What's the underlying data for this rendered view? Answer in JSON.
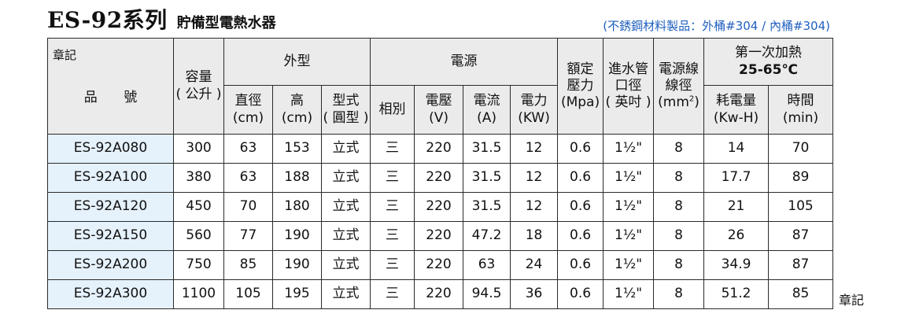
{
  "title": {
    "series": "ES-92系列",
    "subtitle": "貯備型電熱水器"
  },
  "material_note": "(不銹鋼材料製品：外桶#304 / 內桶#304)",
  "header": {
    "mark": "章記",
    "model": "品 號",
    "capacity": [
      "容量",
      "( 公升 )"
    ],
    "dimensions": "外型",
    "diameter": [
      "直徑",
      "(cm)"
    ],
    "height": [
      "高",
      "(cm)"
    ],
    "type": [
      "型式",
      "( 圓型 )"
    ],
    "power_source": "電源",
    "phase": "相別",
    "voltage": [
      "電壓",
      "(V)"
    ],
    "current": [
      "電流",
      "(A)"
    ],
    "power": [
      "電力",
      "(KW)"
    ],
    "pressure": [
      "額定",
      "壓力",
      "(Mpa)"
    ],
    "inlet": [
      "進水管",
      "口徑",
      "( 英吋 )"
    ],
    "wire": [
      "電源線",
      "線徑",
      "(mm",
      "2",
      ")"
    ],
    "first_heat": [
      "第一次加熱",
      "25-65℃"
    ],
    "energy": [
      "耗電量",
      "(Kw-H)"
    ],
    "time": [
      "時間",
      "(min)"
    ]
  },
  "rows": [
    [
      "ES-92A080",
      "300",
      "63",
      "153",
      "立式",
      "三",
      "220",
      "31.5",
      "12",
      "0.6",
      "1½\"",
      "8",
      "14",
      "70"
    ],
    [
      "ES-92A100",
      "380",
      "63",
      "188",
      "立式",
      "三",
      "220",
      "31.5",
      "12",
      "0.6",
      "1½\"",
      "8",
      "17.7",
      "89"
    ],
    [
      "ES-92A120",
      "450",
      "70",
      "180",
      "立式",
      "三",
      "220",
      "31.5",
      "12",
      "0.6",
      "1½\"",
      "8",
      "21",
      "105"
    ],
    [
      "ES-92A150",
      "560",
      "77",
      "190",
      "立式",
      "三",
      "220",
      "47.2",
      "18",
      "0.6",
      "1½\"",
      "8",
      "26",
      "87"
    ],
    [
      "ES-92A200",
      "750",
      "85",
      "190",
      "立式",
      "三",
      "220",
      "63",
      "24",
      "0.6",
      "1½\"",
      "8",
      "34.9",
      "87"
    ],
    [
      "ES-92A300",
      "1100",
      "105",
      "195",
      "立式",
      "三",
      "220",
      "94.5",
      "36",
      "0.6",
      "1½\"",
      "8",
      "51.2",
      "85"
    ]
  ],
  "footer_mark": "章記"
}
